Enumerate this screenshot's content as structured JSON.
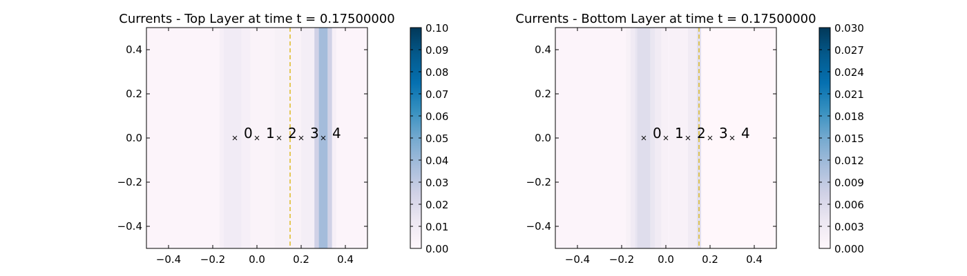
{
  "chart_data": [
    {
      "type": "heatmap",
      "title": "Currents - Top Layer at time t =     0.17500000",
      "xlim": [
        -0.5,
        0.5
      ],
      "ylim": [
        -0.5,
        0.5
      ],
      "xticks": [
        "−0.4",
        "−0.2",
        "0.0",
        "0.2",
        "0.4"
      ],
      "xtick_values": [
        -0.4,
        -0.2,
        0.0,
        0.2,
        0.4
      ],
      "yticks": [
        "0.4",
        "0.2",
        "0.0",
        "−0.2",
        "−0.4"
      ],
      "ytick_values": [
        0.4,
        0.2,
        0.0,
        -0.2,
        -0.4
      ],
      "colormap": [
        "#fff7fb",
        "#ece7f2",
        "#d0d1e6",
        "#a6bddb",
        "#74a9cf",
        "#3690c0",
        "#0570b0",
        "#045a8d",
        "#023858"
      ],
      "colorbar": {
        "min": 0.0,
        "max": 0.1,
        "ticks": [
          "0.00",
          "0.01",
          "0.02",
          "0.03",
          "0.04",
          "0.05",
          "0.06",
          "0.07",
          "0.08",
          "0.09",
          "0.10"
        ],
        "tick_values": [
          0.0,
          0.01,
          0.02,
          0.03,
          0.04,
          0.05,
          0.06,
          0.07,
          0.08,
          0.09,
          0.1
        ]
      },
      "bands": [
        {
          "x0": -0.5,
          "x1": -0.17,
          "value": 0.002
        },
        {
          "x0": -0.17,
          "x1": -0.15,
          "value": 0.006
        },
        {
          "x0": -0.15,
          "x1": -0.07,
          "value": 0.009
        },
        {
          "x0": -0.07,
          "x1": -0.03,
          "value": 0.006
        },
        {
          "x0": -0.03,
          "x1": 0.08,
          "value": 0.003
        },
        {
          "x0": 0.08,
          "x1": 0.15,
          "value": 0.005
        },
        {
          "x0": 0.15,
          "x1": 0.2,
          "value": 0.004
        },
        {
          "x0": 0.2,
          "x1": 0.26,
          "value": 0.007
        },
        {
          "x0": 0.26,
          "x1": 0.28,
          "value": 0.025
        },
        {
          "x0": 0.28,
          "x1": 0.32,
          "value": 0.038
        },
        {
          "x0": 0.32,
          "x1": 0.34,
          "value": 0.025
        },
        {
          "x0": 0.34,
          "x1": 0.36,
          "value": 0.006
        },
        {
          "x0": 0.36,
          "x1": 0.5,
          "value": 0.002
        }
      ],
      "vline": {
        "x": 0.15,
        "color": "#d9b200"
      },
      "markers": [
        {
          "x": -0.1,
          "y": 0.0,
          "label": "0"
        },
        {
          "x": 0.0,
          "y": 0.0,
          "label": "1"
        },
        {
          "x": 0.1,
          "y": 0.0,
          "label": "2"
        },
        {
          "x": 0.2,
          "y": 0.0,
          "label": "3"
        },
        {
          "x": 0.3,
          "y": 0.0,
          "label": "4"
        }
      ]
    },
    {
      "type": "heatmap",
      "title": "Currents - Bottom Layer at time t =     0.17500000",
      "xlim": [
        -0.5,
        0.5
      ],
      "ylim": [
        -0.5,
        0.5
      ],
      "xticks": [
        "−0.4",
        "−0.2",
        "0.0",
        "0.2",
        "0.4"
      ],
      "xtick_values": [
        -0.4,
        -0.2,
        0.0,
        0.2,
        0.4
      ],
      "yticks": [
        "0.4",
        "0.2",
        "0.0",
        "−0.2",
        "−0.4"
      ],
      "ytick_values": [
        0.4,
        0.2,
        0.0,
        -0.2,
        -0.4
      ],
      "colormap": [
        "#fff7fb",
        "#ece7f2",
        "#d0d1e6",
        "#a6bddb",
        "#74a9cf",
        "#3690c0",
        "#0570b0",
        "#045a8d",
        "#023858"
      ],
      "colorbar": {
        "min": 0.0,
        "max": 0.03,
        "ticks": [
          "0.000",
          "0.003",
          "0.006",
          "0.009",
          "0.012",
          "0.015",
          "0.018",
          "0.021",
          "0.024",
          "0.027",
          "0.030"
        ],
        "tick_values": [
          0.0,
          0.003,
          0.006,
          0.009,
          0.012,
          0.015,
          0.018,
          0.021,
          0.024,
          0.027,
          0.03
        ]
      },
      "bands": [
        {
          "x0": -0.5,
          "x1": -0.18,
          "value": 0.0006
        },
        {
          "x0": -0.18,
          "x1": -0.16,
          "value": 0.0015
        },
        {
          "x0": -0.16,
          "x1": -0.14,
          "value": 0.003
        },
        {
          "x0": -0.14,
          "x1": -0.13,
          "value": 0.0042
        },
        {
          "x0": -0.13,
          "x1": -0.07,
          "value": 0.0055
        },
        {
          "x0": -0.07,
          "x1": -0.05,
          "value": 0.004
        },
        {
          "x0": -0.05,
          "x1": -0.02,
          "value": 0.0028
        },
        {
          "x0": -0.02,
          "x1": 0.01,
          "value": 0.0016
        },
        {
          "x0": 0.01,
          "x1": 0.1,
          "value": 0.0013
        },
        {
          "x0": 0.1,
          "x1": 0.14,
          "value": 0.0028
        },
        {
          "x0": 0.14,
          "x1": 0.16,
          "value": 0.005
        },
        {
          "x0": 0.16,
          "x1": 0.5,
          "value": 0.0
        }
      ],
      "vline": {
        "x": 0.15,
        "color": "#d9b200"
      },
      "markers": [
        {
          "x": -0.1,
          "y": 0.0,
          "label": "0"
        },
        {
          "x": 0.0,
          "y": 0.0,
          "label": "1"
        },
        {
          "x": 0.1,
          "y": 0.0,
          "label": "2"
        },
        {
          "x": 0.2,
          "y": 0.0,
          "label": "3"
        },
        {
          "x": 0.3,
          "y": 0.0,
          "label": "4"
        }
      ]
    }
  ]
}
